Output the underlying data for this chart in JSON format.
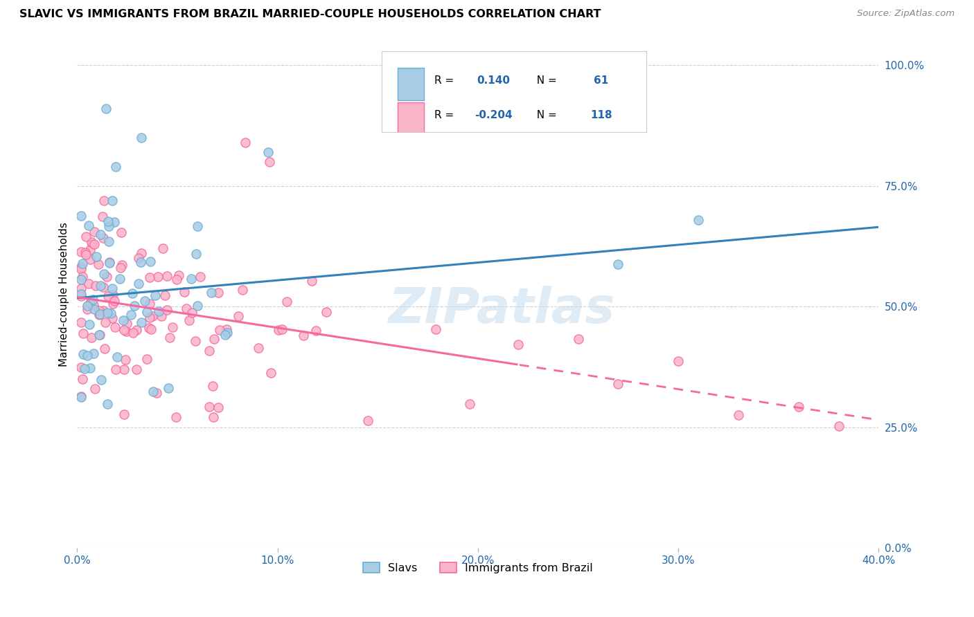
{
  "title": "SLAVIC VS IMMIGRANTS FROM BRAZIL MARRIED-COUPLE HOUSEHOLDS CORRELATION CHART",
  "source": "Source: ZipAtlas.com",
  "ylabel": "Married-couple Households",
  "yticks_labels": [
    "0.0%",
    "25.0%",
    "50.0%",
    "75.0%",
    "100.0%"
  ],
  "ytick_vals": [
    0.0,
    0.25,
    0.5,
    0.75,
    1.0
  ],
  "xticks_labels": [
    "0.0%",
    "10.0%",
    "20.0%",
    "30.0%",
    "40.0%"
  ],
  "xtick_vals": [
    0.0,
    0.1,
    0.2,
    0.3,
    0.4
  ],
  "xmin": 0.0,
  "xmax": 0.4,
  "ymin": 0.0,
  "ymax": 1.05,
  "blue_face": "#a8cce4",
  "blue_edge": "#6aaed6",
  "pink_face": "#f9b4c8",
  "pink_edge": "#f768a1",
  "trend_blue": "#3182bd",
  "trend_pink": "#f768a1",
  "R_blue": 0.14,
  "N_blue": 61,
  "R_pink": -0.204,
  "N_pink": 118,
  "watermark": "ZIPatlas",
  "legend_label_blue": "Slavs",
  "legend_label_pink": "Immigrants from Brazil",
  "tick_color": "#2166ac",
  "grid_color": "#d0d0d0"
}
